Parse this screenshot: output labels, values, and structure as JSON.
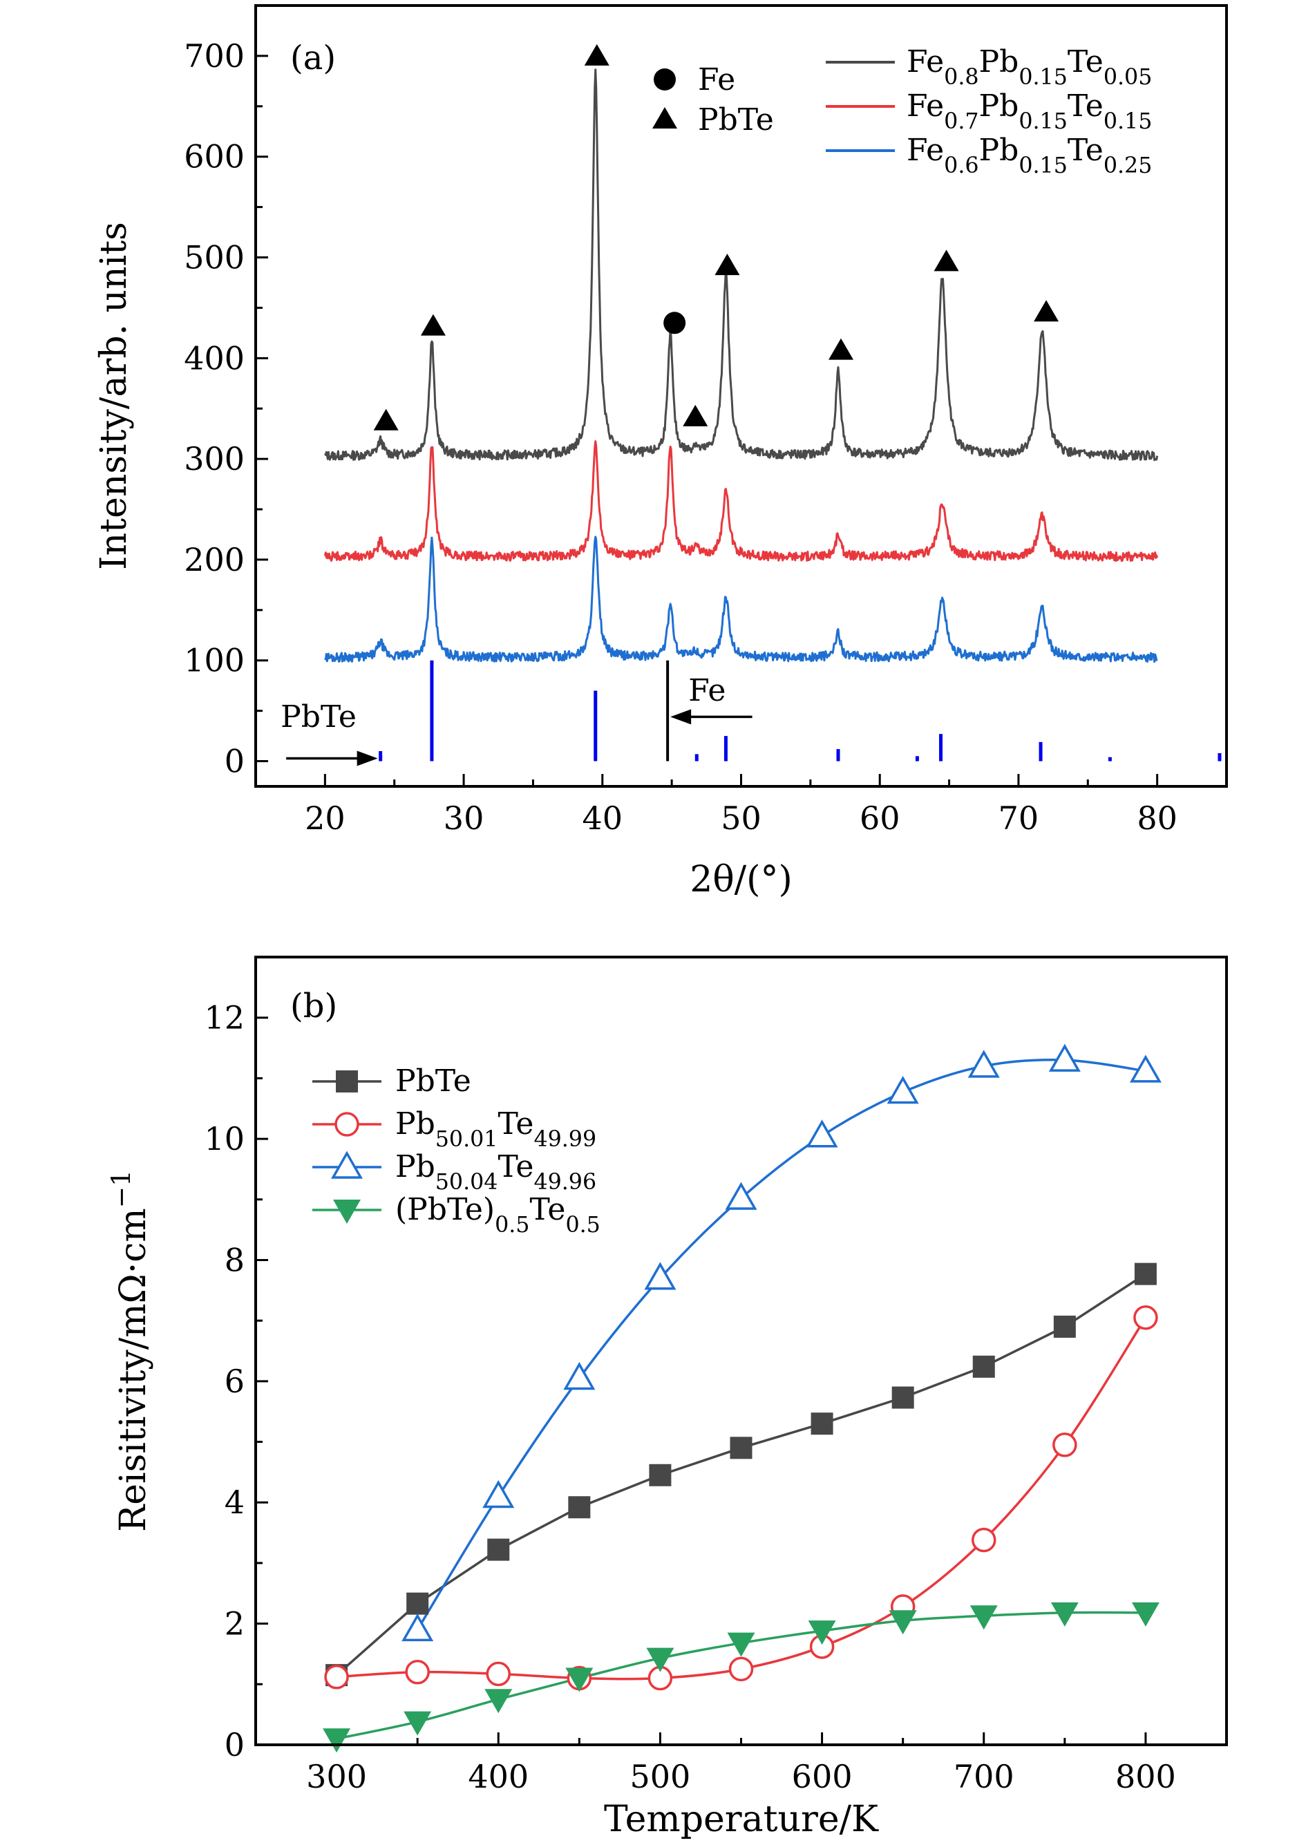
{
  "chart_data": [
    {
      "type": "line",
      "panel_label": "(a)",
      "xlabel": "2θ/(°)",
      "ylabel": "Intensity/arb. units",
      "xlim": [
        15,
        85
      ],
      "ylim": [
        -25,
        750
      ],
      "xticks": [
        "20",
        "30",
        "40",
        "50",
        "60",
        "70",
        "80"
      ],
      "yticks": [
        "0",
        "100",
        "200",
        "300",
        "400",
        "500",
        "600",
        "700"
      ],
      "series": [
        {
          "name": "Fe0.8Pb0.15Te0.05",
          "base": "Fe",
          "s1": "0.8",
          "m1": "Pb",
          "s2": "0.15",
          "m2": "Te",
          "s3": "0.05",
          "color": "#4a4a4a",
          "baseline": 303,
          "peaks": [
            [
              24.0,
              15,
              0.25
            ],
            [
              27.7,
              115,
              0.22
            ],
            [
              39.5,
              380,
              0.25
            ],
            [
              44.9,
              120,
              0.22
            ],
            [
              46.7,
              8,
              0.2
            ],
            [
              48.9,
              180,
              0.28
            ],
            [
              57.0,
              85,
              0.22
            ],
            [
              64.5,
              175,
              0.35
            ],
            [
              71.7,
              125,
              0.35
            ]
          ]
        },
        {
          "name": "Fe0.7Pb0.15Te0.15",
          "base": "Fe",
          "s1": "0.7",
          "m1": "Pb",
          "s2": "0.15",
          "m2": "Te",
          "s3": "0.15",
          "color": "#e8383d",
          "baseline": 203,
          "peaks": [
            [
              24.0,
              15,
              0.25
            ],
            [
              27.7,
              112,
              0.22
            ],
            [
              39.5,
              112,
              0.25
            ],
            [
              44.9,
              112,
              0.22
            ],
            [
              46.7,
              10,
              0.2
            ],
            [
              48.9,
              65,
              0.28
            ],
            [
              57.0,
              22,
              0.22
            ],
            [
              64.5,
              52,
              0.35
            ],
            [
              71.7,
              40,
              0.35
            ]
          ]
        },
        {
          "name": "Fe0.6Pb0.15Te0.25",
          "base": "Fe",
          "s1": "0.6",
          "m1": "Pb",
          "s2": "0.15",
          "m2": "Te",
          "s3": "0.25",
          "color": "#1f6fd1",
          "baseline": 103,
          "peaks": [
            [
              24.0,
              15,
              0.25
            ],
            [
              27.7,
              115,
              0.22
            ],
            [
              39.5,
              118,
              0.25
            ],
            [
              44.9,
              55,
              0.22
            ],
            [
              46.7,
              6,
              0.2
            ],
            [
              48.9,
              60,
              0.28
            ],
            [
              57.0,
              25,
              0.22
            ],
            [
              64.5,
              58,
              0.35
            ],
            [
              71.7,
              50,
              0.35
            ]
          ]
        }
      ],
      "reference_lines": {
        "PbTe": {
          "color": "#0000ee",
          "lines": [
            [
              24.0,
              10
            ],
            [
              27.7,
              100
            ],
            [
              39.5,
              70
            ],
            [
              46.8,
              7
            ],
            [
              48.9,
              25
            ],
            [
              57.0,
              12
            ],
            [
              62.7,
              5
            ],
            [
              64.4,
              27
            ],
            [
              71.6,
              19
            ],
            [
              76.6,
              4
            ],
            [
              84.5,
              8
            ]
          ]
        },
        "Fe": {
          "color": "#000000",
          "lines": [
            [
              44.7,
              100
            ]
          ]
        }
      },
      "markers": {
        "circle": [
          [
            45.2,
            435
          ]
        ],
        "triangle": [
          [
            24.4,
            338
          ],
          [
            27.8,
            432
          ],
          [
            39.6,
            700
          ],
          [
            46.7,
            342
          ],
          [
            49.0,
            492
          ],
          [
            57.2,
            408
          ],
          [
            64.8,
            496
          ],
          [
            72.0,
            446
          ]
        ]
      },
      "legend": {
        "position": "top-right",
        "fe_label": "Fe",
        "pbte_label": "PbTe"
      },
      "annotations": {
        "pbte": "PbTe",
        "fe": "Fe"
      }
    },
    {
      "type": "line",
      "panel_label": "(b)",
      "xlabel": "Temperature/K",
      "ylabel": "Reisitivity/mΩ·cm",
      "ylabel_sup": "−1",
      "xlim": [
        250,
        850
      ],
      "ylim": [
        0,
        13
      ],
      "xticks": [
        "300",
        "400",
        "500",
        "600",
        "700",
        "800"
      ],
      "yticks": [
        "0",
        "2",
        "4",
        "6",
        "8",
        "10",
        "12"
      ],
      "x": [
        300,
        350,
        400,
        450,
        500,
        550,
        600,
        650,
        700,
        750,
        800
      ],
      "series": [
        {
          "name": "PbTe",
          "marker": "square",
          "color": "#474747",
          "values": [
            1.15,
            2.33,
            3.22,
            3.92,
            4.45,
            4.9,
            5.3,
            5.73,
            6.24,
            6.9,
            7.77
          ]
        },
        {
          "name": "Pb50.01Te49.99",
          "p1": "Pb",
          "s1": "50.01",
          "p2": "Te",
          "s2": "49.99",
          "marker": "circle-open",
          "color": "#e8383d",
          "values": [
            1.12,
            1.2,
            1.17,
            1.1,
            1.1,
            1.25,
            1.62,
            2.28,
            3.38,
            4.95,
            7.05
          ]
        },
        {
          "name": "Pb50.04Te49.96",
          "p1": "Pb",
          "s1": "50.04",
          "p2": "Te",
          "s2": "49.96",
          "marker": "triangle-open",
          "color": "#1f6fd1",
          "x": [
            350,
            400,
            450,
            500,
            550,
            600,
            650,
            700,
            750,
            800
          ],
          "values": [
            1.9,
            4.1,
            6.05,
            7.7,
            9.02,
            10.05,
            10.77,
            11.2,
            11.3,
            11.12
          ]
        },
        {
          "name": "(PbTe)0.5Te0.5",
          "p1": "(PbTe)",
          "s1": "0.5",
          "p2": "Te",
          "s2": "0.5",
          "marker": "triangle-down",
          "color": "#2aa05e",
          "values": [
            0.1,
            0.38,
            0.75,
            1.1,
            1.43,
            1.68,
            1.88,
            2.05,
            2.13,
            2.18,
            2.18
          ]
        }
      ],
      "legend": {
        "position": "top-left"
      }
    }
  ]
}
